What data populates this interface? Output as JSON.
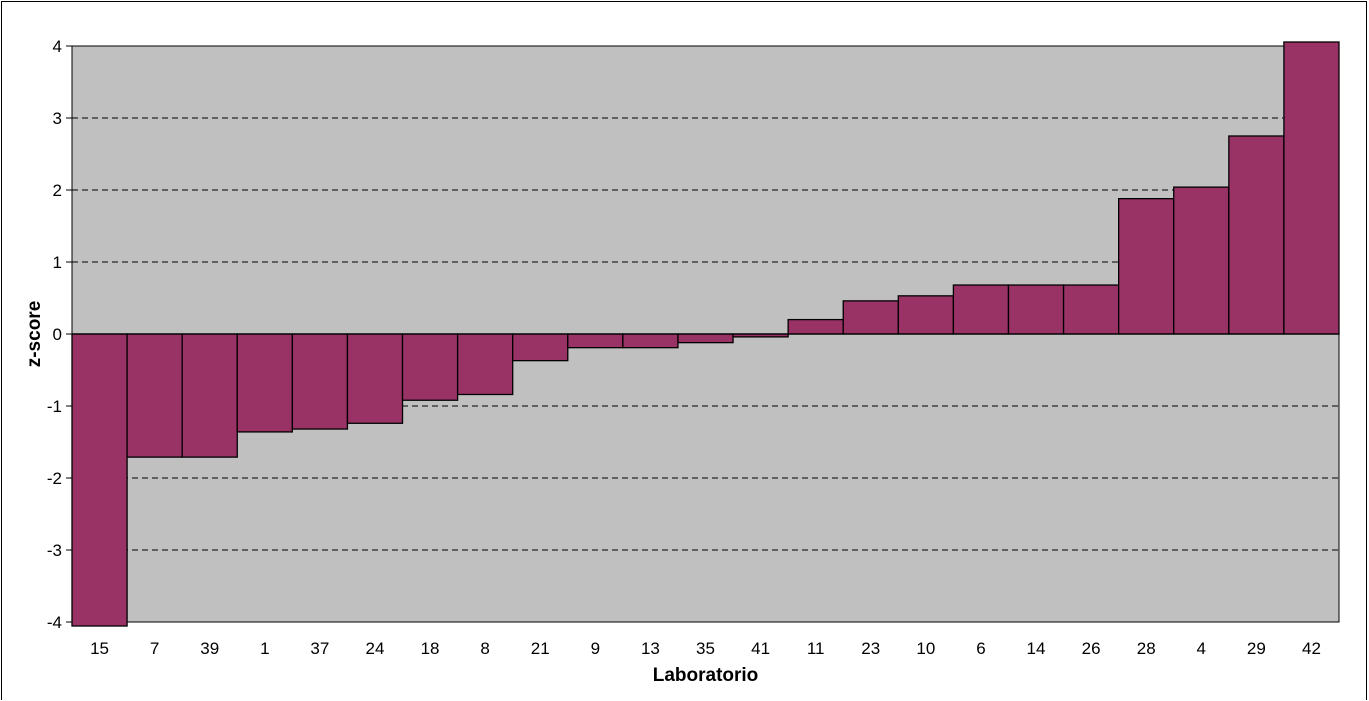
{
  "chart_data": {
    "type": "bar",
    "xlabel": "Laboratorio",
    "ylabel": "z-score",
    "ylim": [
      -4,
      4
    ],
    "yticks": [
      4,
      3,
      2,
      1,
      0,
      -1,
      -2,
      -3,
      -4
    ],
    "grid": true,
    "categories": [
      "15",
      "7",
      "39",
      "1",
      "37",
      "24",
      "18",
      "8",
      "21",
      "9",
      "13",
      "35",
      "41",
      "11",
      "23",
      "10",
      "6",
      "14",
      "26",
      "28",
      "4",
      "29",
      "42"
    ],
    "values": [
      -4.1,
      -1.71,
      -1.71,
      -1.36,
      -1.32,
      -1.24,
      -0.92,
      -0.84,
      -0.37,
      -0.19,
      -0.19,
      -0.12,
      -0.04,
      0.2,
      0.46,
      0.53,
      0.68,
      0.68,
      0.68,
      1.88,
      2.04,
      2.75,
      4.07
    ]
  },
  "colors": {
    "bar": "#993366",
    "plot_background": "#c0c0c0",
    "grid": "#000000"
  }
}
